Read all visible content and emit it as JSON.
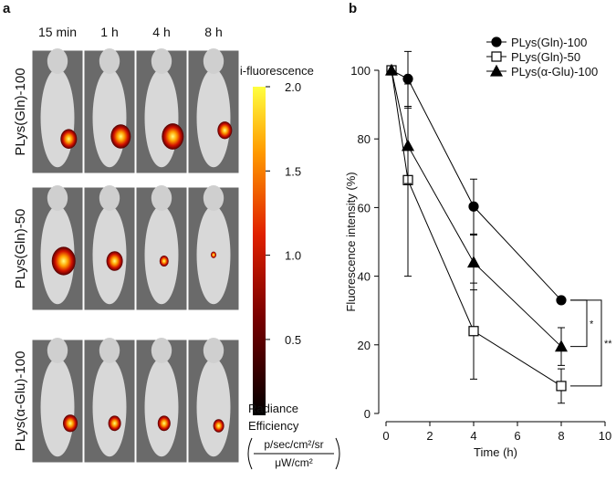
{
  "panel_a": {
    "label": "a",
    "times": [
      "15 min",
      "1 h",
      "4 h",
      "8 h"
    ],
    "rows": [
      "PLys(Gln)-100",
      "PLys(Gln)-50",
      "PLys(α-Glu)-100"
    ],
    "colorbar": {
      "title": "Epi-fluorescence",
      "lim": [
        0.05,
        2
      ],
      "ticks": [
        {
          "value": 2,
          "label": "2.0"
        },
        {
          "value": 1.5,
          "label": "1.5"
        },
        {
          "value": 1,
          "label": "1.0"
        },
        {
          "value": 0.5,
          "label": "0.5"
        }
      ],
      "label_lines": [
        "Radiance",
        "Efficiency"
      ],
      "unit_numerator": "p/sec/cm²/sr",
      "unit_denominator": "μW/cm²"
    }
  },
  "chart_data": {
    "type": "line",
    "panel_label": "b",
    "x_label": "Time (h)",
    "y_label": "Fluorescence intensity (%)",
    "x": [
      0.25,
      1,
      4,
      8
    ],
    "xlim": [
      0,
      10
    ],
    "xticks": [
      0,
      2,
      4,
      6,
      8,
      10
    ],
    "ylim": [
      0,
      100
    ],
    "yticks": [
      0,
      20,
      40,
      60,
      80,
      100
    ],
    "legend": "upper right",
    "series": [
      {
        "name": "PLys(Gln)-100",
        "marker": "circle",
        "filled": true,
        "color": "#000000",
        "values": [
          100,
          97.5,
          60.3,
          33
        ],
        "errors": [
          0,
          8,
          8,
          0
        ]
      },
      {
        "name": "PLys(Gln)-50",
        "marker": "square",
        "filled": false,
        "color": "#000000",
        "values": [
          100,
          68,
          24,
          8
        ],
        "errors": [
          0,
          28,
          14,
          5
        ]
      },
      {
        "name": "PLys(α-Glu)-100",
        "marker": "triangle",
        "filled": true,
        "color": "#000000",
        "values": [
          100,
          78,
          44,
          19.5
        ],
        "errors": [
          0,
          11,
          8,
          5.5
        ]
      }
    ],
    "annotations": [
      "*",
      "**"
    ]
  }
}
